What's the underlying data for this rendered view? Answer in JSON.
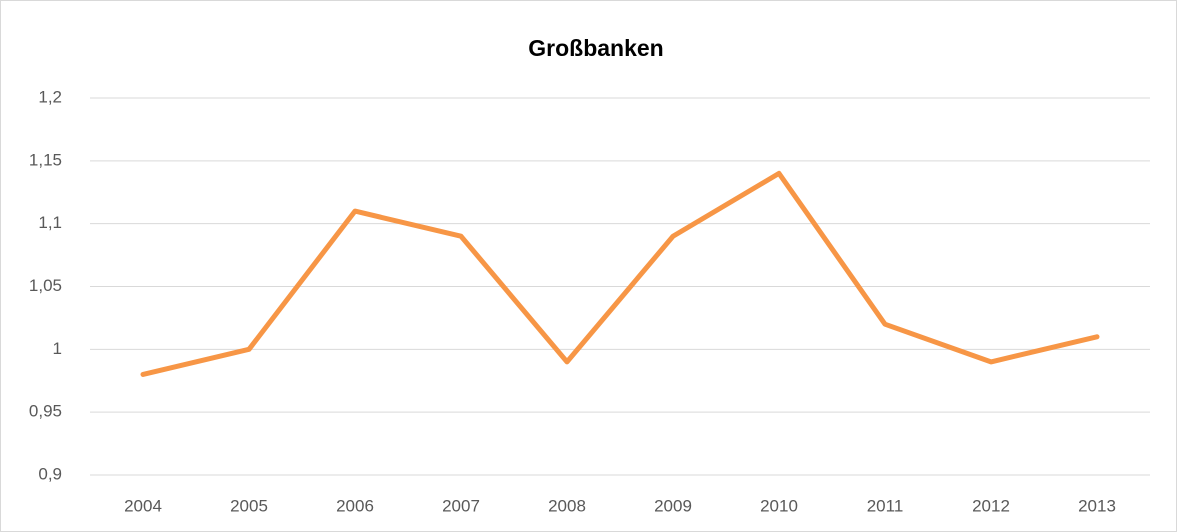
{
  "chart_data": {
    "type": "line",
    "title": "Großbanken",
    "categories": [
      "2004",
      "2005",
      "2006",
      "2007",
      "2008",
      "2009",
      "2010",
      "2011",
      "2012",
      "2013"
    ],
    "series": [
      {
        "name": "Großbanken",
        "color": "#f79646",
        "values": [
          0.98,
          1.0,
          1.11,
          1.09,
          0.99,
          1.09,
          1.14,
          1.02,
          0.99,
          1.01
        ]
      }
    ],
    "ylim": [
      0.9,
      1.2
    ],
    "yticks": [
      {
        "value": 0.9,
        "label": "0,9"
      },
      {
        "value": 0.95,
        "label": "0,95"
      },
      1,
      {
        "value": 1.05,
        "label": "1,05"
      },
      {
        "value": 1.1,
        "label": "1,1"
      },
      {
        "value": 1.15,
        "label": "1,15"
      },
      {
        "value": 1.2,
        "label": "1,2"
      }
    ],
    "grid": true,
    "legend": false
  }
}
